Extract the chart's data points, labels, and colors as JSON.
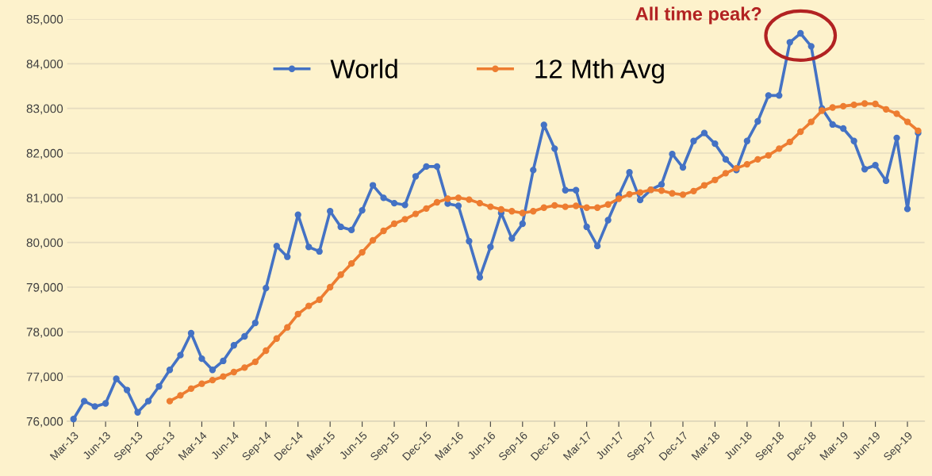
{
  "chart_data": {
    "type": "line",
    "categories": [
      "Mar-13",
      null,
      null,
      "Jun-13",
      null,
      null,
      "Sep-13",
      null,
      null,
      "Dec-13",
      null,
      null,
      "Mar-14",
      null,
      null,
      "Jun-14",
      null,
      null,
      "Sep-14",
      null,
      null,
      "Dec-14",
      null,
      null,
      "Mar-15",
      null,
      null,
      "Jun-15",
      null,
      null,
      "Sep-15",
      null,
      null,
      "Dec-15",
      null,
      null,
      "Mar-16",
      null,
      null,
      "Jun-16",
      null,
      null,
      "Sep-16",
      null,
      null,
      "Dec-16",
      null,
      null,
      "Mar-17",
      null,
      null,
      "Jun-17",
      null,
      null,
      "Sep-17",
      null,
      null,
      "Dec-17",
      null,
      null,
      "Mar-18",
      null,
      null,
      "Jun-18",
      null,
      null,
      "Sep-18",
      null,
      null,
      "Dec-18",
      null,
      null,
      "Mar-19",
      null,
      null,
      "Jun-19",
      null,
      null,
      "Sep-19",
      null
    ],
    "series": [
      {
        "name": "World",
        "color": "#4472c4",
        "values": [
          76050,
          76450,
          76330,
          76400,
          76950,
          76700,
          76200,
          76450,
          76780,
          77150,
          77480,
          77970,
          77400,
          77150,
          77350,
          77700,
          77900,
          78200,
          78980,
          79920,
          79680,
          80620,
          79900,
          79800,
          80700,
          80350,
          80280,
          80720,
          81280,
          81000,
          80880,
          80840,
          81480,
          81700,
          81700,
          80870,
          80820,
          80030,
          79220,
          79900,
          80660,
          80090,
          80420,
          81620,
          82630,
          82100,
          81170,
          81170,
          80350,
          79920,
          80500,
          81050,
          81570,
          80950,
          81180,
          81300,
          81980,
          81680,
          82270,
          82450,
          82210,
          81860,
          81620,
          82270,
          82710,
          83290,
          83290,
          84480,
          84680,
          84390,
          83000,
          82640,
          82550,
          82270,
          81640,
          81730,
          81380,
          82340,
          80750,
          82450
        ]
      },
      {
        "name": "12 Mth Avg",
        "color": "#ed7d31",
        "values": [
          null,
          null,
          null,
          null,
          null,
          null,
          null,
          null,
          null,
          76450,
          76580,
          76730,
          76840,
          76920,
          77000,
          77100,
          77200,
          77330,
          77580,
          77850,
          78100,
          78400,
          78580,
          78720,
          79000,
          79280,
          79530,
          79780,
          80050,
          80260,
          80420,
          80520,
          80640,
          80760,
          80900,
          80980,
          81000,
          80960,
          80880,
          80800,
          80740,
          80700,
          80660,
          80700,
          80780,
          80830,
          80800,
          80820,
          80780,
          80780,
          80850,
          80980,
          81080,
          81120,
          81180,
          81160,
          81100,
          81070,
          81150,
          81280,
          81400,
          81550,
          81660,
          81750,
          81860,
          81950,
          82100,
          82250,
          82480,
          82700,
          82950,
          83020,
          83050,
          83080,
          83110,
          83100,
          82980,
          82880,
          82700,
          82500
        ]
      }
    ],
    "ylim": [
      76000,
      85000
    ],
    "yticks": [
      {
        "value": 76000,
        "label": "76,000"
      },
      {
        "value": 77000,
        "label": "77,000"
      },
      {
        "value": 78000,
        "label": "78,000"
      },
      {
        "value": 79000,
        "label": "79,000"
      },
      {
        "value": 80000,
        "label": "80,000"
      },
      {
        "value": 81000,
        "label": "81,000"
      },
      {
        "value": 82000,
        "label": "82,000"
      },
      {
        "value": 83000,
        "label": "83,000"
      },
      {
        "value": 84000,
        "label": "84,000"
      },
      {
        "value": 85000,
        "label": "85,000"
      }
    ],
    "grid": "y",
    "legend": "top",
    "marker": "circle",
    "line_style": "solid",
    "annotations": [
      "All time peak?"
    ]
  }
}
